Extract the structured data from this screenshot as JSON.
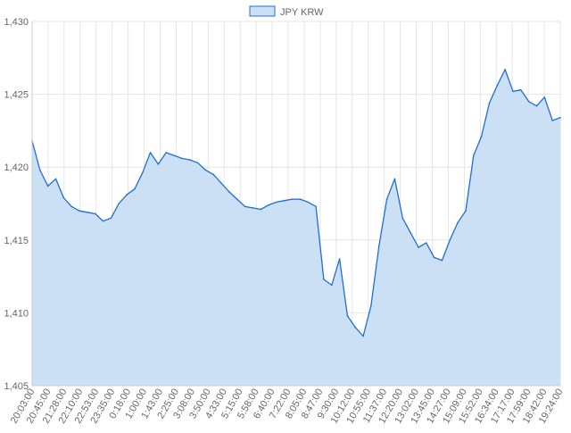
{
  "chart_data": {
    "type": "area",
    "legend": {
      "position": "top-center",
      "entries": [
        "JPY KRW"
      ]
    },
    "series": [
      {
        "name": "JPY KRW",
        "color": "#1f6fd0",
        "fill": "#cce0f5",
        "x": [
          "20:03:00",
          "20:24:00",
          "20:45:00",
          "21:06:00",
          "21:28:00",
          "21:49:00",
          "22:10:00",
          "22:32:00",
          "22:53:00",
          "23:14:00",
          "23:35:00",
          "23:57:00",
          "0:18:00",
          "0:39:00",
          "1:00:00",
          "1:22:00",
          "1:43:00",
          "2:04:00",
          "2:25:00",
          "2:46:00",
          "3:08:00",
          "3:29:00",
          "3:50:00",
          "4:11:00",
          "4:33:00",
          "4:54:00",
          "5:15:00",
          "5:37:00",
          "5:58:00",
          "6:19:00",
          "6:40:00",
          "7:01:00",
          "7:22:00",
          "7:44:00",
          "8:05:00",
          "8:26:00",
          "8:47:00",
          "9:09:00",
          "9:30:00",
          "9:51:00",
          "10:12:00",
          "10:34:00",
          "10:55:00",
          "11:16:00",
          "11:37:00",
          "11:58:00",
          "12:20:00",
          "12:41:00",
          "13:02:00",
          "13:23:00",
          "13:45:00",
          "14:06:00",
          "14:27:00",
          "14:48:00",
          "15:09:00",
          "15:31:00",
          "15:52:00",
          "16:13:00",
          "16:34:00",
          "16:55:00",
          "17:17:00",
          "17:38:00",
          "17:59:00",
          "18:20:00",
          "18:42:00",
          "19:03:00",
          "19:24:00",
          "19:45:00"
        ],
        "values": [
          1421.8,
          1419.8,
          1418.7,
          1419.2,
          1417.9,
          1417.3,
          1417.0,
          1416.9,
          1416.8,
          1416.3,
          1416.5,
          1417.5,
          1418.1,
          1418.5,
          1419.6,
          1421.0,
          1420.2,
          1421.0,
          1420.8,
          1420.6,
          1420.5,
          1420.3,
          1419.8,
          1419.5,
          1418.9,
          1418.3,
          1417.8,
          1417.3,
          1417.2,
          1417.1,
          1417.4,
          1417.6,
          1417.7,
          1417.8,
          1417.8,
          1417.6,
          1417.3,
          1412.3,
          1411.9,
          1413.7,
          1409.8,
          1409.0,
          1408.4,
          1410.5,
          1414.6,
          1417.8,
          1419.2,
          1416.5,
          1415.5,
          1414.5,
          1414.8,
          1413.8,
          1413.6,
          1415.0,
          1416.2,
          1417.0,
          1420.8,
          1422.1,
          1424.4,
          1425.6,
          1426.7,
          1425.2,
          1425.3,
          1424.5,
          1424.2,
          1424.8,
          1423.2,
          1423.4
        ]
      }
    ],
    "xlabel": "",
    "ylabel": "",
    "ylim": [
      1405,
      1430
    ],
    "yticks": [
      "1,405",
      "1,410",
      "1,415",
      "1,420",
      "1,425",
      "1,430"
    ],
    "xtick_labels": [
      "20:03:00",
      "20:45:00",
      "21:28:00",
      "22:10:00",
      "22:53:00",
      "23:35:00",
      "0:18:00",
      "1:00:00",
      "1:43:00",
      "2:25:00",
      "3:08:00",
      "3:50:00",
      "4:33:00",
      "5:15:00",
      "5:58:00",
      "6:40:00",
      "7:22:00",
      "8:05:00",
      "8:47:00",
      "9:30:00",
      "10:12:00",
      "10:55:00",
      "11:37:00",
      "12:20:00",
      "13:02:00",
      "13:45:00",
      "14:27:00",
      "15:09:00",
      "15:52:00",
      "16:34:00",
      "17:17:00",
      "17:59:00",
      "18:42:00",
      "19:24:00"
    ],
    "grid": true
  }
}
